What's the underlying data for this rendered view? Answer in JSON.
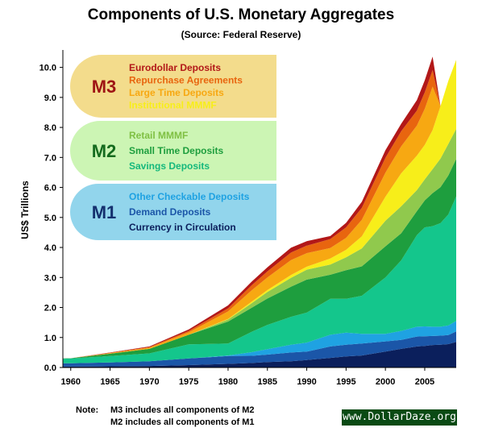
{
  "title": "Components of U.S. Monetary Aggregates",
  "subtitle": "(Source: Federal Reserve)",
  "note": {
    "label": "Note:",
    "line1": "M3 includes all components of M2",
    "line2": "M2 includes all components of M1"
  },
  "watermark": "www.DollarDaze.org",
  "chart_data": {
    "type": "area",
    "stacked": true,
    "ylabel": "US$ Trillions",
    "xlabel": "",
    "xlim": [
      1959,
      2009
    ],
    "ylim": [
      0,
      10.5
    ],
    "x_ticks": [
      1960,
      1965,
      1970,
      1975,
      1980,
      1985,
      1990,
      1995,
      2000,
      2005
    ],
    "y_ticks": [
      "0.0",
      "1.0",
      "2.0",
      "3.0",
      "4.0",
      "5.0",
      "6.0",
      "7.0",
      "8.0",
      "9.0",
      "10.0"
    ],
    "grid": false,
    "x": [
      1959,
      1960,
      1965,
      1970,
      1975,
      1980,
      1983,
      1985,
      1988,
      1990,
      1993,
      1995,
      1997,
      2000,
      2002,
      2004,
      2005,
      2006,
      2007,
      2008,
      2009
    ],
    "series": [
      {
        "name": "Currency in Circulation",
        "group": "M1",
        "color": "#0b1f5c",
        "values": [
          0.03,
          0.03,
          0.04,
          0.05,
          0.08,
          0.12,
          0.15,
          0.18,
          0.21,
          0.25,
          0.32,
          0.37,
          0.4,
          0.53,
          0.62,
          0.7,
          0.72,
          0.75,
          0.76,
          0.78,
          0.85
        ]
      },
      {
        "name": "Demand Deposits",
        "group": "M1",
        "color": "#1b56a8",
        "values": [
          0.11,
          0.11,
          0.13,
          0.16,
          0.22,
          0.26,
          0.24,
          0.25,
          0.29,
          0.28,
          0.38,
          0.39,
          0.4,
          0.34,
          0.3,
          0.33,
          0.32,
          0.3,
          0.3,
          0.3,
          0.35
        ]
      },
      {
        "name": "Other Checkable Deposits",
        "group": "M1",
        "color": "#1fa2e2",
        "values": [
          0.0,
          0.0,
          0.0,
          0.0,
          0.0,
          0.02,
          0.12,
          0.18,
          0.26,
          0.3,
          0.39,
          0.4,
          0.32,
          0.25,
          0.3,
          0.33,
          0.33,
          0.31,
          0.3,
          0.32,
          0.35
        ]
      },
      {
        "name": "Savings Deposits",
        "group": "M2",
        "color": "#14c68c",
        "values": [
          0.15,
          0.16,
          0.21,
          0.26,
          0.47,
          0.4,
          0.68,
          0.81,
          0.93,
          1.0,
          1.2,
          1.13,
          1.27,
          1.88,
          2.35,
          3.05,
          3.3,
          3.35,
          3.45,
          3.7,
          4.15
        ]
      },
      {
        "name": "Small Time Deposits",
        "group": "M2",
        "color": "#1e9e3e",
        "values": [
          0.01,
          0.01,
          0.08,
          0.15,
          0.32,
          0.73,
          0.8,
          0.88,
          1.0,
          1.1,
          0.8,
          0.95,
          0.98,
          1.04,
          0.9,
          0.8,
          0.9,
          1.1,
          1.2,
          1.3,
          1.25
        ]
      },
      {
        "name": "Retail MMMF",
        "group": "M2",
        "color": "#90c94d",
        "values": [
          0.0,
          0.0,
          0.0,
          0.0,
          0.0,
          0.07,
          0.15,
          0.22,
          0.3,
          0.33,
          0.34,
          0.43,
          0.6,
          0.85,
          0.9,
          0.7,
          0.7,
          0.8,
          0.95,
          1.05,
          1.0
        ]
      },
      {
        "name": "Institutional MMMF",
        "group": "M3",
        "color": "#f7ee1a",
        "values": [
          0.0,
          0.0,
          0.0,
          0.0,
          0.0,
          0.02,
          0.05,
          0.06,
          0.09,
          0.1,
          0.2,
          0.25,
          0.4,
          0.8,
          1.1,
          1.15,
          1.15,
          1.3,
          1.75,
          2.1,
          2.3
        ]
      },
      {
        "name": "Large Time Deposits",
        "group": "M3",
        "color": "#f7a812",
        "values": [
          0.0,
          0.0,
          0.02,
          0.04,
          0.08,
          0.25,
          0.38,
          0.42,
          0.5,
          0.45,
          0.35,
          0.4,
          0.55,
          0.8,
          0.9,
          1.0,
          1.2,
          1.45,
          0,
          0,
          0
        ]
      },
      {
        "name": "Repurchase Agreements",
        "group": "M3",
        "color": "#e8650f",
        "values": [
          0.0,
          0.0,
          0.01,
          0.02,
          0.05,
          0.1,
          0.17,
          0.2,
          0.25,
          0.25,
          0.3,
          0.35,
          0.4,
          0.5,
          0.5,
          0.5,
          0.55,
          0.55,
          0,
          0,
          0
        ]
      },
      {
        "name": "Eurodollar Deposits",
        "group": "M3",
        "color": "#b21818",
        "values": [
          0.0,
          0.0,
          0.01,
          0.02,
          0.05,
          0.1,
          0.12,
          0.14,
          0.16,
          0.15,
          0.1,
          0.15,
          0.2,
          0.25,
          0.25,
          0.35,
          0.4,
          0.45,
          0,
          0,
          0
        ]
      }
    ]
  },
  "legend": [
    {
      "label": "M3",
      "color": "#f3dc8c",
      "label_color": "#9e1414",
      "items": [
        {
          "text": "Eurodollar Deposits",
          "color": "#b21818"
        },
        {
          "text": "Repurchase Agreements",
          "color": "#e8650f"
        },
        {
          "text": "Large Time Deposits",
          "color": "#f7a812"
        },
        {
          "text": "Institutional MMMF",
          "color": "#f7ee1a"
        }
      ]
    },
    {
      "label": "M2",
      "color": "#ccf5b4",
      "label_color": "#146b1e",
      "items": [
        {
          "text": "Retail MMMF",
          "color": "#7fc043"
        },
        {
          "text": "Small Time Deposits",
          "color": "#1e9e3e"
        },
        {
          "text": "Savings Deposits",
          "color": "#14b87c"
        }
      ]
    },
    {
      "label": "M1",
      "color": "#92d5ec",
      "label_color": "#14306e",
      "items": [
        {
          "text": "Other Checkable Deposits",
          "color": "#1fa2e2"
        },
        {
          "text": "Demand Deposits",
          "color": "#1b56a8"
        },
        {
          "text": "Currency in Circulation",
          "color": "#0b1f5c"
        }
      ]
    }
  ]
}
